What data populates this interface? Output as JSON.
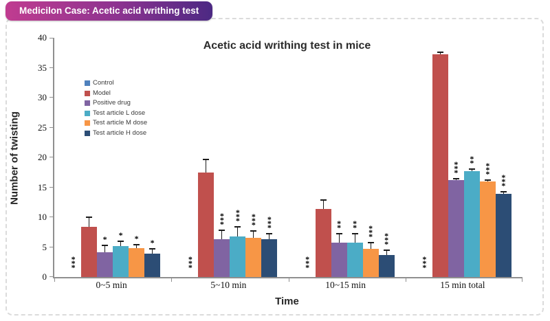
{
  "badge": {
    "label": "Medicilon Case: Acetic acid writhing test",
    "gradient_from": "#c03c90",
    "gradient_to": "#4c2983"
  },
  "chart_data": {
    "type": "bar",
    "title": "Acetic acid writhing test in mice",
    "xlabel": "Time",
    "ylabel": "Number of twisting",
    "ylim": [
      0,
      40
    ],
    "yticks": [
      0,
      5,
      10,
      15,
      20,
      25,
      30,
      35,
      40
    ],
    "grid": false,
    "legend_position": "upper-left-inside",
    "error_bars": "plus-direction",
    "categories": [
      "0~5 min",
      "5~10 min",
      "10~15 min",
      "15 min total"
    ],
    "series": [
      {
        "name": "Control",
        "color": "#4f81bd",
        "values": [
          0,
          0,
          0,
          0
        ],
        "errors": [
          0,
          0,
          0,
          0
        ],
        "sig": [
          "***",
          "***",
          "***",
          "***"
        ]
      },
      {
        "name": "Model",
        "color": "#c0504d",
        "values": [
          8.4,
          17.5,
          11.4,
          37.3
        ],
        "errors": [
          1.6,
          2.1,
          1.5,
          0.3
        ],
        "sig": [
          "",
          "",
          "",
          ""
        ]
      },
      {
        "name": "Positive drug",
        "color": "#8064a2",
        "values": [
          4.1,
          6.3,
          5.8,
          16.2
        ],
        "errors": [
          1.2,
          1.5,
          1.4,
          0.2
        ],
        "sig": [
          "*",
          "***",
          "**",
          "***"
        ]
      },
      {
        "name": "Test article L dose",
        "color": "#4bacc6",
        "values": [
          5.2,
          6.8,
          5.7,
          17.7
        ],
        "errors": [
          0.8,
          1.6,
          1.5,
          0.3
        ],
        "sig": [
          "*",
          "***",
          "**",
          "**"
        ]
      },
      {
        "name": "Test article M dose",
        "color": "#f79646",
        "values": [
          4.8,
          6.5,
          4.7,
          16.0
        ],
        "errors": [
          0.6,
          1.2,
          1.1,
          0.2
        ],
        "sig": [
          "*",
          "***",
          "***",
          "***"
        ]
      },
      {
        "name": "Test article H dose",
        "color": "#2c4d75",
        "values": [
          3.9,
          6.3,
          3.7,
          13.9
        ],
        "errors": [
          0.8,
          1.0,
          0.8,
          0.3
        ],
        "sig": [
          "*",
          "***",
          "***",
          "***"
        ]
      }
    ]
  }
}
